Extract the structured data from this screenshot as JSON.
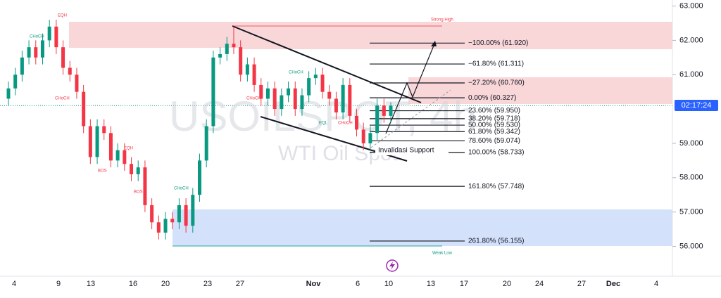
{
  "chart_data": {
    "type": "candlestick",
    "open": [
      60.3,
      60.6,
      61.0,
      61.5,
      61.8,
      61.5,
      62.0,
      62.4,
      61.8,
      61.2,
      61.0,
      60.5,
      59.5,
      58.6,
      59.5,
      59.3,
      58.5,
      58.8,
      58.4,
      58.1,
      58.3,
      57.2,
      56.7,
      56.4,
      56.8,
      56.7,
      57.2,
      56.6,
      57.5,
      58.5,
      59.5,
      61.5,
      61.6,
      61.9,
      61.8,
      61.0,
      61.3,
      60.7,
      60.3,
      60.6,
      60.0,
      60.4,
      60.6,
      60.0,
      60.4,
      60.9,
      61.0,
      60.5,
      60.3,
      59.9,
      60.7,
      59.8,
      59.4,
      59.0,
      59.3,
      60.1,
      59.8
    ],
    "high": [
      60.8,
      61.2,
      61.7,
      62.0,
      62.0,
      62.2,
      62.6,
      62.6,
      62.0,
      61.4,
      61.2,
      60.7,
      59.7,
      59.7,
      59.7,
      59.5,
      59.0,
      59.0,
      58.6,
      58.5,
      58.5,
      57.4,
      56.9,
      57.0,
      57.0,
      57.4,
      57.4,
      57.7,
      58.7,
      59.7,
      61.7,
      61.8,
      62.1,
      62.4,
      62.0,
      61.5,
      61.5,
      60.9,
      60.8,
      60.8,
      60.6,
      60.8,
      60.8,
      60.6,
      61.1,
      61.2,
      61.2,
      60.7,
      60.5,
      60.9,
      60.9,
      60.0,
      59.6,
      59.5,
      60.3,
      60.3,
      60.2
    ],
    "low": [
      60.1,
      60.4,
      60.8,
      61.3,
      61.3,
      61.3,
      61.8,
      61.6,
      61.0,
      60.8,
      60.3,
      59.3,
      58.4,
      58.4,
      59.1,
      58.3,
      58.3,
      58.2,
      57.9,
      57.9,
      57.0,
      56.5,
      56.2,
      56.2,
      56.5,
      56.5,
      56.4,
      56.4,
      57.3,
      58.3,
      59.3,
      61.3,
      61.4,
      61.6,
      60.8,
      60.8,
      60.5,
      60.1,
      60.1,
      59.8,
      59.8,
      60.2,
      59.8,
      59.8,
      60.2,
      60.7,
      60.3,
      60.1,
      59.7,
      59.7,
      59.6,
      59.2,
      58.8,
      58.8,
      59.1,
      59.6,
      59.6
    ],
    "close": [
      60.6,
      61.0,
      61.5,
      61.8,
      61.5,
      62.0,
      62.4,
      61.8,
      61.2,
      61.0,
      60.5,
      59.5,
      58.6,
      59.5,
      59.3,
      58.5,
      58.8,
      58.4,
      58.1,
      58.3,
      57.2,
      56.7,
      56.4,
      56.8,
      56.7,
      57.2,
      56.6,
      57.5,
      58.5,
      59.5,
      61.5,
      61.6,
      61.9,
      61.8,
      61.0,
      61.3,
      60.7,
      60.3,
      60.6,
      60.0,
      60.4,
      60.6,
      60.0,
      60.4,
      60.9,
      61.0,
      60.5,
      60.3,
      59.9,
      60.7,
      59.8,
      59.4,
      59.0,
      59.3,
      60.1,
      59.8,
      60.1
    ],
    "up_color": "#089981",
    "down_color": "#f23645",
    "xticks": [
      "4",
      "9",
      "13",
      "16",
      "20",
      "23",
      "27",
      "Nov",
      "6",
      "10",
      "13",
      "17",
      "20",
      "24",
      "27",
      "Dec",
      "4"
    ],
    "ylim": [
      55.13,
      63.175
    ],
    "yticks": [
      {
        "value": 56,
        "label": "56.000"
      },
      {
        "value": 57,
        "label": "57.000"
      },
      {
        "value": 58,
        "label": "58.000"
      },
      {
        "value": 59,
        "label": "59.000"
      },
      {
        "value": 61,
        "label": "61.000"
      },
      {
        "value": 62,
        "label": "62.000"
      },
      {
        "value": 63,
        "label": "63.000"
      }
    ],
    "fib_levels": [
      {
        "label": "−100.00% (61.920)",
        "price": 61.92
      },
      {
        "label": "−61.80% (61.311)",
        "price": 61.311
      },
      {
        "label": "−27.20% (60.760)",
        "price": 60.76
      },
      {
        "label": "0.00% (60.327)",
        "price": 60.327
      },
      {
        "label": "23.60% (59.950)",
        "price": 59.95
      },
      {
        "label": "38.20% (59.718)",
        "price": 59.718
      },
      {
        "label": "50.00% (59.530)",
        "price": 59.53
      },
      {
        "label": "61.80% (59.342)",
        "price": 59.342
      },
      {
        "label": "78.60% (59.074)",
        "price": 59.074
      },
      {
        "label": "100.00% (58.733)",
        "price": 58.733
      },
      {
        "label": "161.80% (57.748)",
        "price": 57.748
      },
      {
        "label": "261.80% (56.155)",
        "price": 56.155
      }
    ],
    "invalidation_label": "Invalidasi Support"
  },
  "annotations": [
    "EQH",
    "CHoCH",
    "CHoCH",
    "BOS",
    "EQH",
    "BOS",
    "CHoCH",
    "CHoCH",
    "CHoCH",
    "EQL",
    "CHoCH",
    "Strong High",
    "Weak Low"
  ],
  "watermark": {
    "symbol": "USOILSPOT, 4h",
    "name": "WTI Oil Spot"
  },
  "countdown": "02:17:24"
}
